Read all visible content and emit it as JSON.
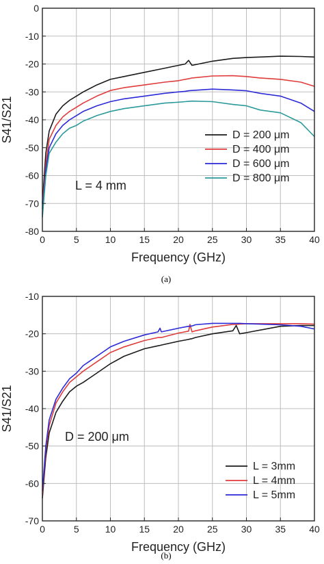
{
  "chart_data": [
    {
      "panel": "(a)",
      "type": "line",
      "xlabel": "Frequency (GHz)",
      "ylabel": "S41/S21",
      "xlim": [
        0,
        40
      ],
      "ylim": [
        -80,
        0
      ],
      "xticks": [
        0,
        5,
        10,
        15,
        20,
        25,
        30,
        35,
        40
      ],
      "yticks": [
        0,
        -10,
        -20,
        -30,
        -40,
        -50,
        -60,
        -70,
        -80
      ],
      "grid": true,
      "legend_position": "bottom-right",
      "annotation": "L = 4 mm",
      "x": [
        0,
        0.5,
        1,
        2,
        3,
        4,
        5,
        6,
        8,
        10,
        12,
        15,
        18,
        20,
        21,
        21.5,
        22,
        25,
        28,
        30,
        32,
        35,
        38,
        40
      ],
      "series": [
        {
          "name": "D = 200 μm",
          "color": "#1a1a1a",
          "values": [
            -70,
            -52,
            -44,
            -38,
            -35,
            -33,
            -31.5,
            -30,
            -27.5,
            -25.5,
            -24.5,
            -23,
            -21.5,
            -20.5,
            -20,
            -18.7,
            -20.5,
            -19,
            -18,
            -17.7,
            -17.5,
            -17.2,
            -17.3,
            -17.5
          ]
        },
        {
          "name": "D = 400 μm",
          "color": "#e03b3b",
          "values": [
            -72,
            -56,
            -47,
            -42,
            -39,
            -37,
            -35.5,
            -34,
            -31.5,
            -29.5,
            -28.5,
            -27.5,
            -26.5,
            -26,
            -25.5,
            -25.3,
            -25,
            -24.3,
            -24.2,
            -24.5,
            -25,
            -25.5,
            -26.5,
            -28
          ]
        },
        {
          "name": "D = 600 μm",
          "color": "#2a2ad8",
          "values": [
            -74,
            -58,
            -50,
            -45,
            -42,
            -40,
            -38.5,
            -37,
            -35,
            -33.5,
            -32.5,
            -31.5,
            -30.5,
            -30,
            -29.8,
            -29.6,
            -29.5,
            -29,
            -29.3,
            -29.6,
            -30.5,
            -31.5,
            -34,
            -37
          ]
        },
        {
          "name": "D = 800 μm",
          "color": "#2a9a9a",
          "values": [
            -75,
            -60,
            -52,
            -48,
            -45,
            -43,
            -42,
            -40.5,
            -38.5,
            -37,
            -36,
            -35,
            -34,
            -33.7,
            -33.5,
            -33.4,
            -33.3,
            -33.5,
            -34.5,
            -35,
            -36.5,
            -37.5,
            -41,
            -46
          ]
        }
      ]
    },
    {
      "panel": "(b)",
      "type": "line",
      "xlabel": "Frequency (GHz)",
      "ylabel": "S41/S21",
      "xlim": [
        0,
        40
      ],
      "ylim": [
        -70,
        -10
      ],
      "xticks": [
        0,
        5,
        10,
        15,
        20,
        25,
        30,
        35,
        40
      ],
      "yticks": [
        -10,
        -20,
        -30,
        -40,
        -50,
        -60,
        -70
      ],
      "grid": true,
      "legend_position": "bottom-right",
      "annotation": "D = 200 μm",
      "x": [
        0,
        0.5,
        1,
        2,
        3,
        4,
        5,
        6,
        8,
        10,
        12,
        15,
        17,
        17.3,
        17.5,
        20,
        21.5,
        21.7,
        22,
        22.5,
        23,
        25,
        28,
        28.5,
        29,
        30,
        35,
        38,
        40
      ],
      "series": [
        {
          "name": "L = 3mm",
          "color": "#1a1a1a",
          "values": [
            -64,
            -53,
            -46.5,
            -41,
            -38,
            -35.5,
            -34,
            -33,
            -30.5,
            -28,
            -26,
            -24,
            -23.2,
            -23.1,
            -23,
            -22,
            -21.5,
            -21.4,
            -21.3,
            -21,
            -20.8,
            -20,
            -19.2,
            -17.8,
            -20,
            -19.7,
            -18,
            -17.8,
            -17.8
          ]
        },
        {
          "name": "L = 4mm",
          "color": "#e03b3b",
          "values": [
            -63,
            -51,
            -44.5,
            -38.5,
            -35.5,
            -33,
            -31.5,
            -30,
            -27.5,
            -25,
            -23.5,
            -21.8,
            -21,
            -21,
            -21,
            -19.8,
            -19.3,
            -17.5,
            -19.5,
            -19.2,
            -19,
            -18.2,
            -17.5,
            -17.5,
            -17.4,
            -17.3,
            -17.3,
            -17.3,
            -17.4
          ]
        },
        {
          "name": "L = 5mm",
          "color": "#2a2ad8",
          "values": [
            -62,
            -50,
            -43,
            -37.5,
            -34.5,
            -32,
            -30.5,
            -28.5,
            -26,
            -23.5,
            -22,
            -20.3,
            -19.5,
            -18.5,
            -19.5,
            -18.5,
            -18,
            -18,
            -17.9,
            -17.6,
            -17.5,
            -17.2,
            -17.2,
            -17.2,
            -17.2,
            -17.3,
            -17.6,
            -18,
            -18.7
          ]
        }
      ]
    }
  ]
}
